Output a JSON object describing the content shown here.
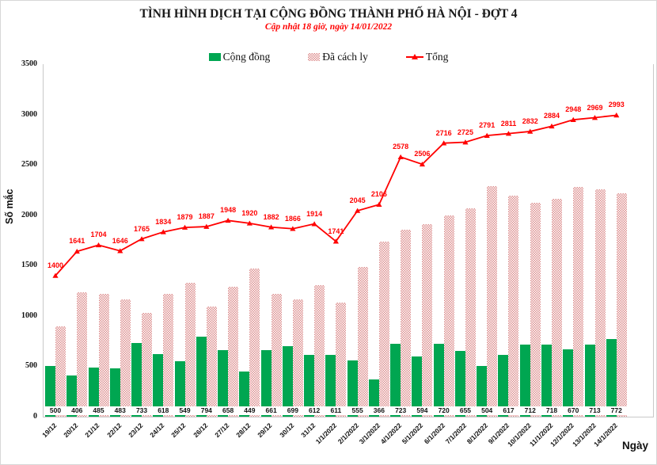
{
  "colors": {
    "green": "#00a651",
    "pink": "#dd8f8f",
    "red": "#ff0000",
    "axis": "#c9c9c9"
  },
  "chart_data": {
    "type": "combo-bar-line",
    "title": "TÌNH HÌNH DỊCH TẠI CỘNG ĐỒNG THÀNH PHỐ HÀ NỘI - ĐỢT 4",
    "subtitle": "Cập nhật 18 giờ, ngày 14/01/2022",
    "categories": [
      "19/12",
      "20/12",
      "21/12",
      "22/12",
      "23/12",
      "24/12",
      "25/12",
      "26/12",
      "27/12",
      "28/12",
      "29/12",
      "30/12",
      "31/12",
      "1/1/2022",
      "2/1/2022",
      "3/1/2022",
      "4/1/2022",
      "5/1/2022",
      "6/1/2022",
      "7/1/2022",
      "8/1/2022",
      "9/1/2022",
      "10/1/2022",
      "11/1/2022",
      "12/1/2022",
      "13/1/2022",
      "14/1/2022"
    ],
    "series": [
      {
        "name": "Cộng đồng",
        "type": "bar",
        "color_key": "green",
        "values": [
          500,
          406,
          485,
          483,
          733,
          618,
          549,
          794,
          658,
          449,
          661,
          699,
          612,
          611,
          555,
          366,
          723,
          594,
          720,
          655,
          504,
          617,
          712,
          718,
          670,
          713,
          772
        ]
      },
      {
        "name": "Đã cách ly",
        "type": "bar",
        "color_key": "pink",
        "values": [
          900,
          1235,
          1219,
          1163,
          1032,
          1216,
          1330,
          1093,
          1290,
          1471,
          1221,
          1167,
          1302,
          1130,
          1490,
          1740,
          1855,
          1912,
          1996,
          2070,
          2287,
          2194,
          2120,
          2166,
          2278,
          2256,
          2221
        ]
      },
      {
        "name": "Tổng",
        "type": "line",
        "color_key": "red",
        "values": [
          1400,
          1641,
          1704,
          1646,
          1765,
          1834,
          1879,
          1887,
          1948,
          1920,
          1882,
          1866,
          1914,
          1741,
          2045,
          2106,
          2578,
          2506,
          2716,
          2725,
          2791,
          2811,
          2832,
          2884,
          2948,
          2969,
          2993
        ]
      }
    ],
    "ylabel": "Số mắc",
    "xlabel": "Ngày",
    "ylim": [
      0,
      3500
    ],
    "yticks": [
      0,
      500,
      1000,
      1500,
      2000,
      2500,
      3000,
      3500
    ],
    "grid": false,
    "legend_position": "top",
    "bar_labels_series": "Cộng đồng",
    "line_labels_series": "Tổng"
  }
}
